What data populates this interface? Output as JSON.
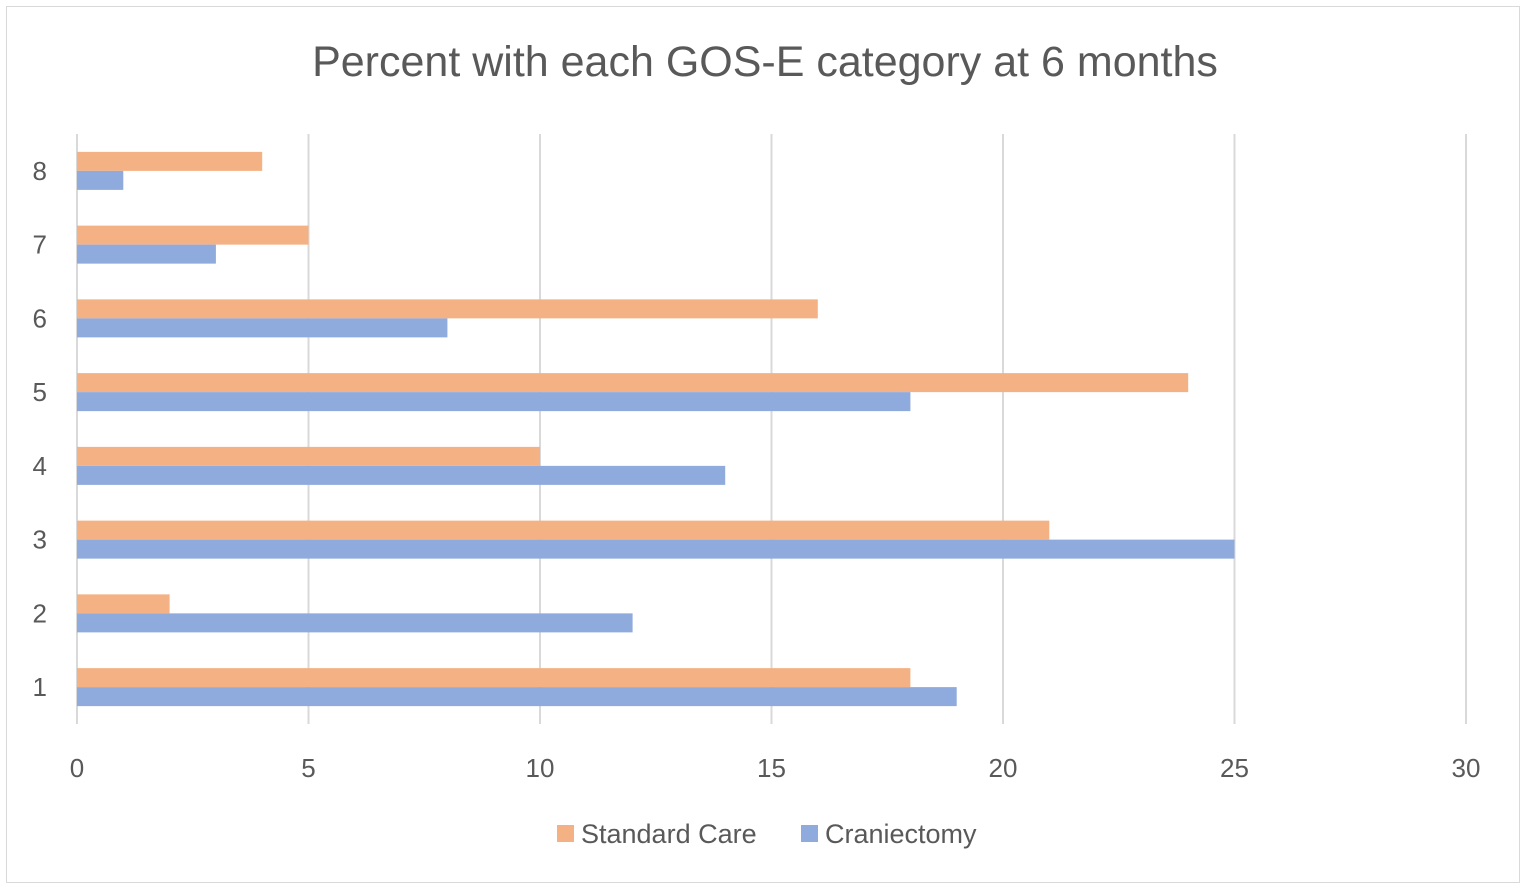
{
  "chart_data": {
    "type": "bar",
    "orientation": "horizontal",
    "title": "Percent with each GOS-E category at 6 months",
    "xlabel": "",
    "ylabel": "",
    "categories": [
      "1",
      "2",
      "3",
      "4",
      "5",
      "6",
      "7",
      "8"
    ],
    "xlim": [
      0,
      30
    ],
    "x_ticks": [
      "0",
      "5",
      "10",
      "15",
      "20",
      "25",
      "30"
    ],
    "grid": true,
    "legend_position": "bottom",
    "series": [
      {
        "name": "Standard Care",
        "color": "#F4B183",
        "values": [
          18,
          2,
          21,
          10,
          24,
          16,
          5,
          4
        ]
      },
      {
        "name": "Craniectomy",
        "color": "#8FAADC",
        "values": [
          19,
          12,
          25,
          14,
          18,
          8,
          3,
          1
        ]
      }
    ]
  }
}
